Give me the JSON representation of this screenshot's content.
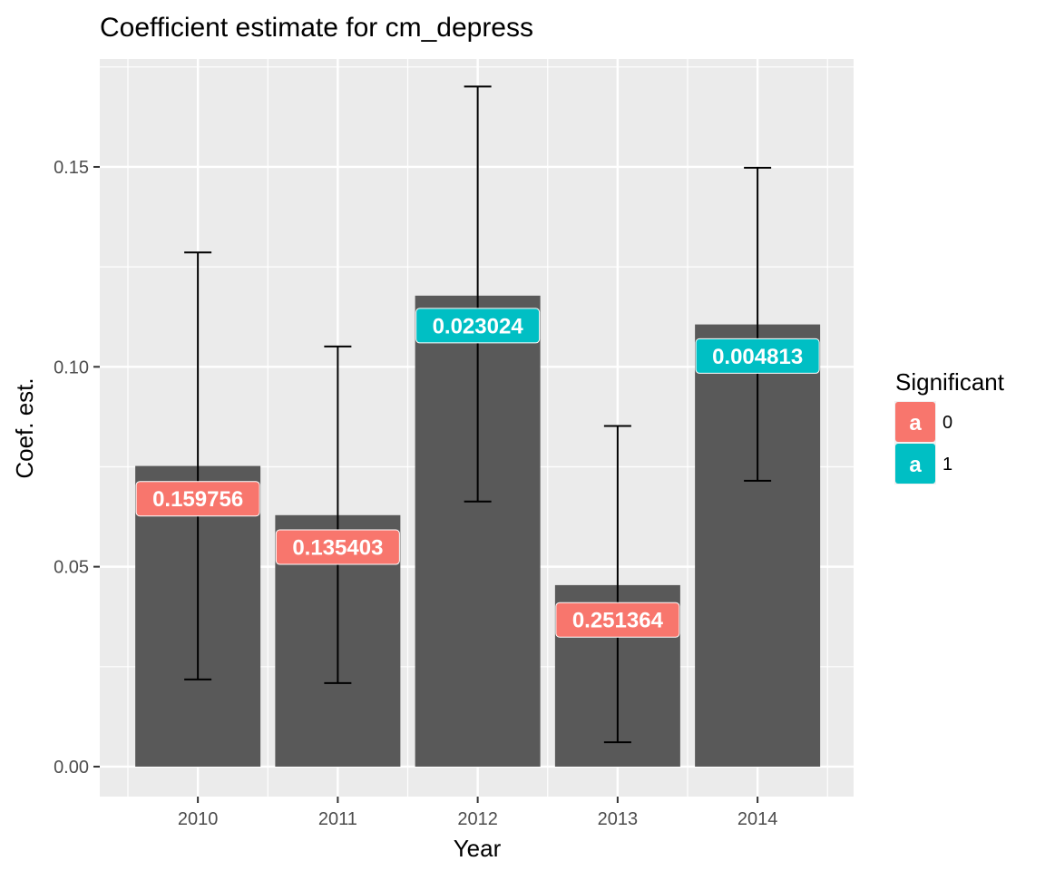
{
  "chart_data": {
    "type": "bar",
    "title": "Coefficient estimate for cm_depress",
    "xlabel": "Year",
    "ylabel": "Coef. est.",
    "categories": [
      "2010",
      "2011",
      "2012",
      "2013",
      "2014"
    ],
    "values": [
      0.0752,
      0.0629,
      0.1178,
      0.0454,
      0.1106
    ],
    "error_low": [
      0.0218,
      0.0209,
      0.0663,
      0.0061,
      0.0715
    ],
    "error_high": [
      0.1286,
      0.1051,
      0.1701,
      0.0852,
      0.1498
    ],
    "labels": [
      "0.159756",
      "0.135403",
      "0.023024",
      "0.251364",
      "0.004813"
    ],
    "label_values": [
      0.067,
      0.0549,
      0.1103,
      0.0367,
      0.1027
    ],
    "significant": [
      "0",
      "0",
      "1",
      "0",
      "1"
    ],
    "ylim": [
      -0.0075,
      0.177
    ],
    "yticks": [
      0.0,
      0.05,
      0.1,
      0.15
    ],
    "ytick_labels": [
      "0.00",
      "0.05",
      "0.10",
      "0.15"
    ],
    "grid": true,
    "legend": {
      "title": "Significant",
      "position": "right",
      "entries": [
        {
          "key": "a",
          "label": "0",
          "color": "#F8766D"
        },
        {
          "key": "a",
          "label": "1",
          "color": "#00BFC4"
        }
      ]
    },
    "colors": {
      "panel": "#EBEBEB",
      "grid": "#FFFFFF",
      "bar": "#595959",
      "error": "#000000",
      "sig0": "#F8766D",
      "sig1": "#00BFC4"
    }
  }
}
